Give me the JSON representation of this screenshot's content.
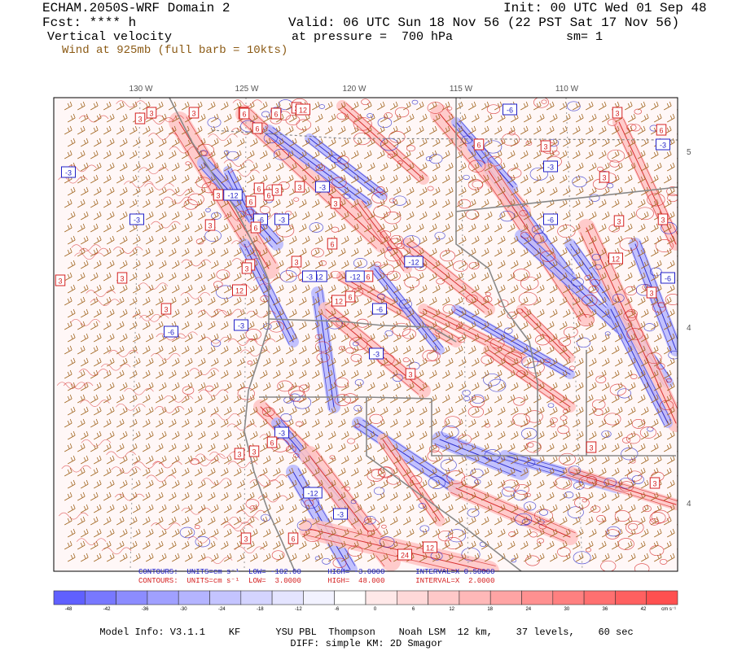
{
  "header": {
    "model_title": "ECHAM.2050S-WRF Domain 2",
    "forecast": "Fcst: **** h",
    "field": "Vertical velocity",
    "wind_note": "Wind at 925mb (full barb = 10kts)",
    "init": "Init: 00 UTC Wed 01 Sep 48",
    "valid": "Valid: 06 UTC Sun 18 Nov 56 (22 PST Sat 17 Nov 56)",
    "pressure": "at pressure =  700 hPa",
    "smoothing": "sm= 1"
  },
  "map": {
    "lon_labels": [
      "130 W",
      "125 W",
      "120 W",
      "115 W",
      "110 W"
    ],
    "lat_labels": [
      "5",
      "4",
      "4"
    ],
    "contour_labels": [
      "3",
      "3",
      "3",
      "6",
      "3",
      "6",
      "12",
      "6",
      "-3",
      "6",
      "-3",
      "3",
      "3",
      "-6",
      "-3",
      "6",
      "6",
      "6",
      "-3",
      "3",
      "3",
      "6",
      "3",
      "-12",
      "6",
      "3",
      "-12",
      "-3",
      "3",
      "3",
      "6",
      "12",
      "-6",
      "-6",
      "-3",
      "-12",
      "12",
      "3",
      "3",
      "3",
      "-3",
      "-12",
      "-6",
      "6",
      "-6",
      "3",
      "-3",
      "6",
      "3",
      "3",
      "-3",
      "3",
      "3",
      "12",
      "-6",
      "3",
      "6",
      "3",
      "-3",
      "6",
      "3",
      "3",
      "-12",
      "-3",
      "6",
      "12",
      "24",
      "3",
      "3",
      "3"
    ],
    "colors": {
      "positive_contour": "#d42020",
      "negative_contour": "#2020c8",
      "wind_barb": "#a0641e",
      "boundary": "#888888"
    }
  },
  "contour_info": {
    "negative": "CONTOURS:  UNITS=cm s⁻¹  LOW= -102.00      HIGH= -3.0000       INTERVAL=X 0.50000",
    "positive": "CONTOURS:  UNITS=cm s⁻¹  LOW=  3.0000      HIGH=  48.000       INTERVAL=X  2.0000"
  },
  "colorbar": {
    "ticks": [
      "-48",
      "-42",
      "-36",
      "-30",
      "-24",
      "-18",
      "-12",
      "-6",
      "0",
      "6",
      "12",
      "18",
      "24",
      "30",
      "36",
      "42"
    ],
    "units": "cm s⁻¹",
    "colors": [
      "#6060ff",
      "#7878ff",
      "#8c8cff",
      "#a0a0ff",
      "#b4b4ff",
      "#c4c4ff",
      "#d4d4ff",
      "#e4e4ff",
      "#f2f2ff",
      "#ffffff",
      "#ffe8e8",
      "#ffd8d8",
      "#ffc8c8",
      "#ffb8b8",
      "#ffa4a4",
      "#ff9090",
      "#ff8080",
      "#ff7070",
      "#ff6060",
      "#ff5050"
    ]
  },
  "footer": {
    "model_info": "Model Info: V3.1.1    KF      YSU PBL  Thompson    Noah LSM  12 km,    37 levels,    60 sec",
    "diff": "DIFF: simple KM: 2D Smagor"
  }
}
